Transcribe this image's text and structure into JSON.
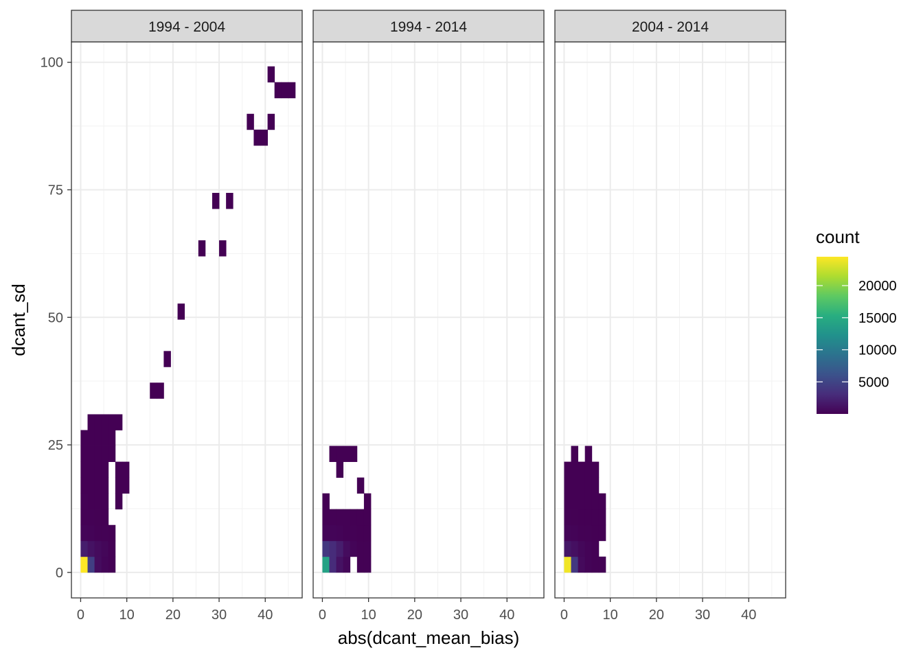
{
  "chart_data": {
    "type": "heatmap",
    "xlabel": "abs(dcant_mean_bias)",
    "ylabel": "dcant_sd",
    "xlim": [
      -2,
      48
    ],
    "ylim": [
      -5,
      104
    ],
    "x_ticks": [
      0,
      10,
      20,
      30,
      40
    ],
    "y_ticks": [
      0,
      25,
      50,
      75,
      100
    ],
    "grid": true,
    "bin_width": [
      1.5,
      3.1
    ],
    "legend": {
      "title": "count",
      "placement": "right",
      "ticks": [
        5000,
        10000,
        15000,
        20000
      ],
      "range": [
        1,
        24500
      ],
      "palette": [
        "#440154",
        "#472d7b",
        "#3b528b",
        "#2c728e",
        "#21918c",
        "#28ae80",
        "#5ec962",
        "#addc30",
        "#fde725"
      ]
    },
    "panels": [
      {
        "label": "1994 - 2004",
        "tiles": [
          [
            0.0,
            0.0,
            24500
          ],
          [
            1.5,
            0.0,
            4500
          ],
          [
            3.0,
            0.0,
            800
          ],
          [
            4.5,
            0.0,
            300
          ],
          [
            6.0,
            0.0,
            100
          ],
          [
            0.0,
            3.1,
            2000
          ],
          [
            1.5,
            3.1,
            1200
          ],
          [
            3.0,
            3.1,
            700
          ],
          [
            4.5,
            3.1,
            400
          ],
          [
            6.0,
            3.1,
            100
          ],
          [
            0.0,
            6.2,
            300
          ],
          [
            1.5,
            6.2,
            200
          ],
          [
            3.0,
            6.2,
            100
          ],
          [
            4.5,
            6.2,
            50
          ],
          [
            6.0,
            6.2,
            20
          ],
          [
            0.0,
            9.3,
            100
          ],
          [
            1.5,
            9.3,
            60
          ],
          [
            3.0,
            9.3,
            40
          ],
          [
            4.5,
            9.3,
            20
          ],
          [
            0.0,
            12.4,
            50
          ],
          [
            1.5,
            12.4,
            30
          ],
          [
            3.0,
            12.4,
            20
          ],
          [
            4.5,
            12.4,
            10
          ],
          [
            7.5,
            12.4,
            2
          ],
          [
            0.0,
            15.5,
            30
          ],
          [
            1.5,
            15.5,
            20
          ],
          [
            3.0,
            15.5,
            10
          ],
          [
            4.5,
            15.5,
            5
          ],
          [
            7.5,
            15.5,
            2
          ],
          [
            9.0,
            15.5,
            2
          ],
          [
            0.0,
            18.6,
            20
          ],
          [
            1.5,
            18.6,
            10
          ],
          [
            3.0,
            18.6,
            8
          ],
          [
            4.5,
            18.6,
            5
          ],
          [
            7.5,
            18.6,
            2
          ],
          [
            9.0,
            18.6,
            2
          ],
          [
            0.0,
            21.7,
            10
          ],
          [
            1.5,
            21.7,
            8
          ],
          [
            3.0,
            21.7,
            5
          ],
          [
            4.5,
            21.7,
            3
          ],
          [
            6.0,
            21.7,
            2
          ],
          [
            0.0,
            24.8,
            5
          ],
          [
            1.5,
            24.8,
            5
          ],
          [
            3.0,
            24.8,
            3
          ],
          [
            4.5,
            24.8,
            2
          ],
          [
            6.0,
            24.8,
            2
          ],
          [
            1.5,
            27.9,
            2
          ],
          [
            3.0,
            27.9,
            2
          ],
          [
            4.5,
            27.9,
            2
          ],
          [
            6.0,
            27.9,
            2
          ],
          [
            7.5,
            27.9,
            1
          ],
          [
            15.0,
            34.1,
            1
          ],
          [
            16.5,
            34.1,
            1
          ],
          [
            18.0,
            40.3,
            1
          ],
          [
            21.0,
            49.6,
            1
          ],
          [
            25.5,
            62.0,
            1
          ],
          [
            30.0,
            62.0,
            1
          ],
          [
            28.5,
            71.3,
            1
          ],
          [
            31.5,
            71.3,
            1
          ],
          [
            37.5,
            83.7,
            1
          ],
          [
            39.0,
            83.7,
            1
          ],
          [
            36.0,
            86.8,
            1
          ],
          [
            40.5,
            86.8,
            1
          ],
          [
            42.0,
            93.0,
            1
          ],
          [
            43.5,
            93.0,
            1
          ],
          [
            45.0,
            93.0,
            1
          ],
          [
            40.5,
            96.1,
            1
          ]
        ]
      },
      {
        "label": "1994 - 2014",
        "tiles": [
          [
            0.0,
            0.0,
            14000
          ],
          [
            1.5,
            0.0,
            3000
          ],
          [
            3.0,
            0.0,
            1200
          ],
          [
            4.5,
            0.0,
            400
          ],
          [
            7.5,
            0.0,
            100
          ],
          [
            9.0,
            0.0,
            50
          ],
          [
            0.0,
            3.1,
            4000
          ],
          [
            1.5,
            3.1,
            3000
          ],
          [
            3.0,
            3.1,
            2000
          ],
          [
            4.5,
            3.1,
            800
          ],
          [
            6.0,
            3.1,
            300
          ],
          [
            7.5,
            3.1,
            100
          ],
          [
            9.0,
            3.1,
            50
          ],
          [
            0.0,
            6.2,
            300
          ],
          [
            1.5,
            6.2,
            300
          ],
          [
            3.0,
            6.2,
            200
          ],
          [
            4.5,
            6.2,
            100
          ],
          [
            6.0,
            6.2,
            50
          ],
          [
            7.5,
            6.2,
            20
          ],
          [
            9.0,
            6.2,
            10
          ],
          [
            0.0,
            9.3,
            100
          ],
          [
            1.5,
            9.3,
            100
          ],
          [
            3.0,
            9.3,
            80
          ],
          [
            4.5,
            9.3,
            50
          ],
          [
            6.0,
            9.3,
            20
          ],
          [
            7.5,
            9.3,
            10
          ],
          [
            9.0,
            9.3,
            5
          ],
          [
            0.0,
            12.4,
            10
          ],
          [
            9.0,
            12.4,
            2
          ],
          [
            7.5,
            15.5,
            1
          ],
          [
            3.0,
            18.6,
            1
          ],
          [
            1.5,
            21.7,
            1
          ],
          [
            3.0,
            21.7,
            1
          ],
          [
            4.5,
            21.7,
            1
          ],
          [
            6.0,
            21.7,
            1
          ]
        ]
      },
      {
        "label": "2004 - 2014",
        "tiles": [
          [
            0.0,
            0.0,
            24000
          ],
          [
            1.5,
            0.0,
            4000
          ],
          [
            3.0,
            0.0,
            600
          ],
          [
            4.5,
            0.0,
            200
          ],
          [
            6.0,
            0.0,
            100
          ],
          [
            7.5,
            0.0,
            50
          ],
          [
            0.0,
            3.1,
            1500
          ],
          [
            1.5,
            3.1,
            1000
          ],
          [
            3.0,
            3.1,
            500
          ],
          [
            4.5,
            3.1,
            200
          ],
          [
            6.0,
            3.1,
            50
          ],
          [
            0.0,
            6.2,
            300
          ],
          [
            1.5,
            6.2,
            200
          ],
          [
            3.0,
            6.2,
            100
          ],
          [
            4.5,
            6.2,
            50
          ],
          [
            6.0,
            6.2,
            20
          ],
          [
            7.5,
            6.2,
            10
          ],
          [
            0.0,
            9.3,
            50
          ],
          [
            1.5,
            9.3,
            40
          ],
          [
            3.0,
            9.3,
            30
          ],
          [
            4.5,
            9.3,
            20
          ],
          [
            6.0,
            9.3,
            10
          ],
          [
            7.5,
            9.3,
            5
          ],
          [
            0.0,
            12.4,
            20
          ],
          [
            1.5,
            12.4,
            15
          ],
          [
            3.0,
            12.4,
            10
          ],
          [
            4.5,
            12.4,
            8
          ],
          [
            6.0,
            12.4,
            5
          ],
          [
            7.5,
            12.4,
            2
          ],
          [
            0.0,
            15.5,
            10
          ],
          [
            1.5,
            15.5,
            8
          ],
          [
            3.0,
            15.5,
            5
          ],
          [
            4.5,
            15.5,
            3
          ],
          [
            6.0,
            15.5,
            2
          ],
          [
            0.0,
            18.6,
            5
          ],
          [
            1.5,
            18.6,
            3
          ],
          [
            3.0,
            18.6,
            2
          ],
          [
            4.5,
            18.6,
            2
          ],
          [
            6.0,
            18.6,
            1
          ],
          [
            1.5,
            21.7,
            1
          ],
          [
            4.5,
            21.7,
            1
          ]
        ]
      }
    ]
  }
}
